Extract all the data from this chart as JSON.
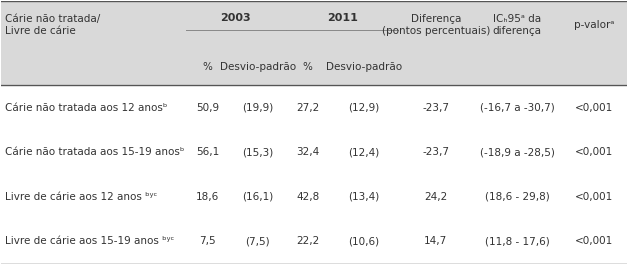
{
  "header_row1": [
    "Cárie não tratada/\nLivre de cárie",
    "2003",
    "",
    "2011",
    "",
    "Diferença\n(pontos percentuais)",
    "IC₅₅ᵃ da\ndiferença",
    "p-valorᵃ"
  ],
  "header_row2": [
    "",
    "%",
    "Desvio-padrão",
    "%",
    "Desvio-padrão",
    "",
    "",
    ""
  ],
  "rows": [
    [
      "Cárie não tratada aos 12 anosᵇ",
      "50,9",
      "(19,9)",
      "27,2",
      "(12,9)",
      "-23,7",
      "(-16,7 a -30,7)",
      "<0,001"
    ],
    [
      "Cárie não tratada aos 15-19 anosᵇ",
      "56,1",
      "(15,3)",
      "32,4",
      "(12,4)",
      "-23,7",
      "(-18,9 a -28,5)",
      "<0,001"
    ],
    [
      "Livre de cárie aos 12 anos ᵇʸᶜ",
      "18,6",
      "(16,1)",
      "42,8",
      "(13,4)",
      "24,2",
      "(18,6 - 29,8)",
      "<0,001"
    ],
    [
      "Livre de cárie aos 15-19 anos ᵇʸᶜ",
      "7,5",
      "(7,5)",
      "22,2",
      "(10,6)",
      "14,7",
      "(11,8 - 17,6)",
      "<0,001"
    ]
  ],
  "bg_header": "#d9d9d9",
  "bg_white": "#ffffff",
  "text_color": "#333333",
  "font_size": 7.5,
  "header_font_size": 8.0
}
